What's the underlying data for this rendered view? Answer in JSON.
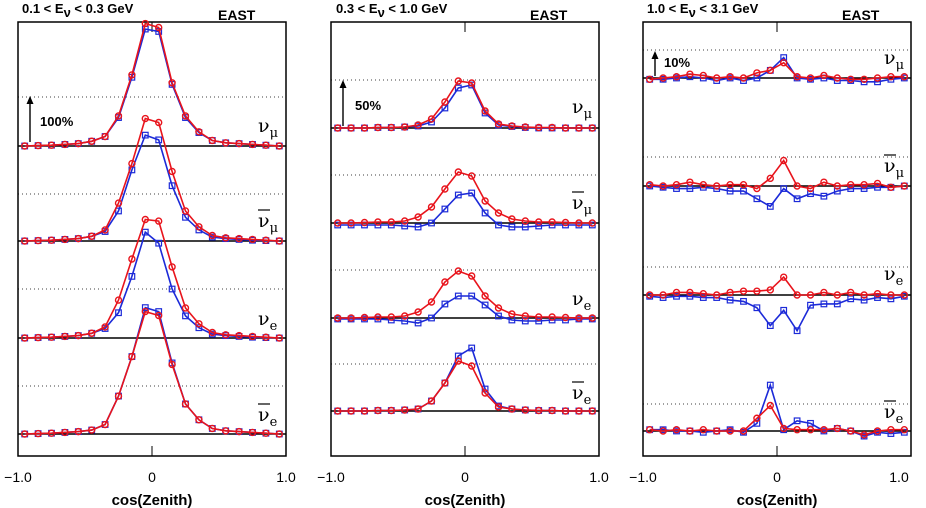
{
  "colors": {
    "series_a": "#e8141c",
    "series_b": "#1c2ad8"
  },
  "chart_data": [
    {
      "type": "line",
      "title": "0.1 < E",
      "title_sub": "ν",
      "title_rest": " < 0.3 GeV",
      "region": "EAST",
      "xlabel": "cos(Zenith)",
      "xlim": [
        -1.0,
        1.0
      ],
      "x_ticks": [
        "−1.0",
        "0",
        "1.0"
      ],
      "scale_label": "100%",
      "x": [
        -0.95,
        -0.85,
        -0.75,
        -0.65,
        -0.55,
        -0.45,
        -0.35,
        -0.25,
        -0.15,
        -0.05,
        0.05,
        0.15,
        0.25,
        0.35,
        0.45,
        0.55,
        0.65,
        0.75,
        0.85,
        0.95
      ],
      "flavors": [
        {
          "label": "ν",
          "sub": "μ",
          "bar": false,
          "series": [
            {
              "name": "",
              "color_key": "series_a",
              "marker": "circle",
              "values": [
                0,
                0.5,
                1,
                2,
                3,
                6,
                12,
                38,
                90,
                155,
                150,
                80,
                38,
                18,
                7,
                4,
                3,
                2,
                1,
                0
              ]
            },
            {
              "name": "",
              "color_key": "series_b",
              "marker": "square",
              "values": [
                0,
                0.5,
                1,
                2,
                3,
                6,
                12,
                36,
                87,
                148,
                145,
                78,
                36,
                17,
                7,
                4,
                3,
                2,
                1,
                0
              ]
            }
          ]
        },
        {
          "label": "ν",
          "sub": "μ",
          "bar": true,
          "series": [
            {
              "name": "",
              "color_key": "series_a",
              "marker": "circle",
              "values": [
                0,
                0.5,
                1,
                2,
                3,
                6,
                14,
                48,
                98,
                155,
                150,
                88,
                38,
                18,
                7,
                4,
                3,
                2,
                1,
                0
              ]
            },
            {
              "name": "",
              "color_key": "series_b",
              "marker": "square",
              "values": [
                0,
                0.5,
                1,
                2,
                3,
                6,
                12,
                38,
                90,
                134,
                128,
                70,
                30,
                14,
                5,
                3,
                2,
                1,
                0.5,
                0
              ]
            }
          ]
        },
        {
          "label": "ν",
          "sub": "e",
          "bar": false,
          "series": [
            {
              "name": "",
              "color_key": "series_a",
              "marker": "circle",
              "values": [
                0,
                0.5,
                1,
                2,
                3,
                6,
                14,
                48,
                100,
                150,
                148,
                90,
                38,
                18,
                7,
                4,
                3,
                2,
                1,
                0
              ]
            },
            {
              "name": "",
              "color_key": "series_b",
              "marker": "square",
              "values": [
                0,
                0.5,
                1,
                2,
                3,
                6,
                12,
                32,
                78,
                134,
                120,
                62,
                28,
                13,
                5,
                3,
                2,
                1,
                0.5,
                0
              ]
            }
          ]
        },
        {
          "label": "ν",
          "sub": "e",
          "bar": true,
          "series": [
            {
              "name": "",
              "color_key": "series_a",
              "marker": "circle",
              "values": [
                0,
                0.5,
                1,
                2,
                3,
                5,
                12,
                48,
                98,
                155,
                150,
                88,
                38,
                18,
                7,
                4,
                3,
                2,
                1,
                0
              ]
            },
            {
              "name": "",
              "color_key": "series_b",
              "marker": "square",
              "values": [
                0,
                0.5,
                1,
                2,
                3,
                5,
                12,
                48,
                98,
                160,
                155,
                90,
                38,
                18,
                7,
                4,
                3,
                2,
                1,
                0
              ]
            }
          ]
        }
      ]
    },
    {
      "type": "line",
      "title": "0.3 < E",
      "title_sub": "ν",
      "title_rest": " < 1.0 GeV",
      "region": "EAST",
      "xlabel": "cos(Zenith)",
      "xlim": [
        -1.0,
        1.0
      ],
      "x_ticks": [
        "−1.0",
        "0",
        "1.0"
      ],
      "scale_label": "50%",
      "x": [
        -0.95,
        -0.85,
        -0.75,
        -0.65,
        -0.55,
        -0.45,
        -0.35,
        -0.25,
        -0.15,
        -0.05,
        0.05,
        0.15,
        0.25,
        0.35,
        0.45,
        0.55,
        0.65,
        0.75,
        0.85,
        0.95
      ],
      "flavors": [
        {
          "label": "ν",
          "sub": "μ",
          "bar": false,
          "series": [
            {
              "name": "",
              "color_key": "series_a",
              "marker": "circle",
              "values": [
                0,
                0,
                0,
                0.5,
                0.5,
                1,
                3,
                9,
                26,
                47,
                45,
                17,
                4,
                2,
                1,
                0.5,
                0.5,
                0,
                0,
                0
              ]
            },
            {
              "name": "",
              "color_key": "series_b",
              "marker": "square",
              "values": [
                0,
                0,
                0,
                0.5,
                0.5,
                1,
                2,
                6,
                20,
                40,
                43,
                15,
                3,
                1.5,
                0.5,
                0,
                0,
                0,
                0,
                0
              ]
            }
          ]
        },
        {
          "label": "ν",
          "sub": "μ",
          "bar": true,
          "series": [
            {
              "name": "",
              "color_key": "series_a",
              "marker": "circle",
              "values": [
                0,
                0,
                0.5,
                1,
                1,
                2,
                6,
                16,
                34,
                51,
                47,
                22,
                10,
                4,
                2,
                1,
                1,
                0.5,
                0,
                0
              ]
            },
            {
              "name": "",
              "color_key": "series_b",
              "marker": "square",
              "values": [
                -2,
                -2,
                -2,
                -2,
                -2,
                -3,
                -4,
                0,
                14,
                28,
                30,
                10,
                -2,
                -4,
                -4,
                -3,
                -2,
                -2,
                -2,
                -2
              ]
            }
          ]
        },
        {
          "label": "ν",
          "sub": "e",
          "bar": false,
          "series": [
            {
              "name": "",
              "color_key": "series_a",
              "marker": "circle",
              "values": [
                0,
                0,
                0.5,
                1,
                1,
                2,
                6,
                16,
                36,
                47,
                42,
                22,
                10,
                4,
                2,
                1,
                1,
                0.5,
                0,
                0
              ]
            },
            {
              "name": "",
              "color_key": "series_b",
              "marker": "square",
              "values": [
                -1,
                -1,
                -1,
                -1,
                -2,
                -3,
                -5,
                0,
                14,
                22,
                22,
                13,
                2,
                -2,
                -3,
                -3,
                -2,
                -2,
                -1,
                -1
              ]
            }
          ]
        },
        {
          "label": "ν",
          "sub": "e",
          "bar": true,
          "series": [
            {
              "name": "",
              "color_key": "series_a",
              "marker": "circle",
              "values": [
                0,
                0,
                0,
                0.5,
                0.5,
                1,
                2,
                10,
                28,
                50,
                45,
                18,
                4,
                2,
                1,
                0.5,
                0.5,
                0,
                0,
                0
              ]
            },
            {
              "name": "",
              "color_key": "series_b",
              "marker": "square",
              "values": [
                0,
                0,
                0,
                0.5,
                0.5,
                1,
                2,
                10,
                28,
                55,
                63,
                22,
                5,
                2,
                1,
                0.5,
                0.5,
                0,
                0,
                0
              ]
            }
          ]
        }
      ]
    },
    {
      "type": "line",
      "title": "1.0 < E",
      "title_sub": "ν",
      "title_rest": " < 3.1 GeV",
      "region": "EAST",
      "xlabel": "cos(Zenith)",
      "xlim": [
        -1.0,
        1.0
      ],
      "x_ticks": [
        "−1.0",
        "0",
        "1.0"
      ],
      "scale_label": "10%",
      "x": [
        -0.95,
        -0.85,
        -0.75,
        -0.65,
        -0.55,
        -0.45,
        -0.35,
        -0.25,
        -0.15,
        -0.05,
        0.05,
        0.15,
        0.25,
        0.35,
        0.45,
        0.55,
        0.65,
        0.75,
        0.85,
        0.95
      ],
      "flavors": [
        {
          "label": "ν",
          "sub": "μ",
          "bar": false,
          "series": [
            {
              "name": "",
              "color_key": "series_a",
              "marker": "circle",
              "values": [
                -0.5,
                0,
                0.5,
                1.5,
                1,
                0,
                0.5,
                0,
                2,
                3,
                6,
                0.5,
                0,
                1,
                0,
                -0.5,
                -0.5,
                0,
                0.5,
                0.5
              ]
            },
            {
              "name": "",
              "color_key": "series_b",
              "marker": "square",
              "values": [
                -0.5,
                -0.5,
                0,
                0.5,
                0,
                -1,
                0,
                -1,
                0,
                3,
                8,
                0,
                -0.5,
                0,
                -1,
                -1,
                -1.5,
                -1.5,
                -0.5,
                0
              ]
            }
          ]
        },
        {
          "label": "ν",
          "sub": "μ",
          "bar": true,
          "series": [
            {
              "name": "",
              "color_key": "series_a",
              "marker": "circle",
              "values": [
                0.5,
                0,
                0.5,
                1.5,
                0.5,
                0,
                0.5,
                0.5,
                -1,
                3,
                10,
                0,
                -1,
                1.5,
                0,
                0.5,
                0.5,
                1,
                -0.5,
                0
              ]
            },
            {
              "name": "",
              "color_key": "series_b",
              "marker": "square",
              "values": [
                0,
                -0.5,
                -1,
                -1,
                -0.5,
                -1,
                -2,
                -2,
                -5,
                -8,
                -1,
                -5,
                -3,
                -4,
                -2,
                -1,
                -1,
                -0.5,
                -0.5,
                0
              ]
            }
          ]
        },
        {
          "label": "ν",
          "sub": "e",
          "bar": false,
          "series": [
            {
              "name": "",
              "color_key": "series_a",
              "marker": "circle",
              "values": [
                0,
                0,
                1,
                1,
                0.5,
                0,
                1,
                1.5,
                1.5,
                2,
                7,
                0,
                0,
                1,
                0,
                1,
                0,
                0.5,
                0,
                0
              ]
            },
            {
              "name": "",
              "color_key": "series_b",
              "marker": "square",
              "values": [
                -0.5,
                -1,
                -0.5,
                -0.5,
                -1,
                -1,
                -2,
                -2.5,
                -5,
                -12,
                -6,
                -14,
                -4,
                -3.5,
                -3.5,
                -1.5,
                -2,
                -1,
                -1.5,
                -0.5
              ]
            }
          ]
        },
        {
          "label": "ν",
          "sub": "e",
          "bar": true,
          "series": [
            {
              "name": "",
              "color_key": "series_a",
              "marker": "circle",
              "values": [
                0.5,
                0,
                0.5,
                0,
                0.5,
                0,
                0,
                0,
                5,
                10,
                1,
                0.5,
                0.5,
                0.5,
                1,
                0,
                -1.5,
                0,
                0.5,
                0.5
              ]
            },
            {
              "name": "",
              "color_key": "series_b",
              "marker": "square",
              "values": [
                0.5,
                0.5,
                0,
                0,
                -0.5,
                0,
                0.5,
                -0.5,
                3,
                18,
                0.5,
                4,
                3,
                0,
                1,
                0,
                -2,
                -0.5,
                -1,
                -0.5
              ]
            }
          ]
        }
      ]
    }
  ]
}
